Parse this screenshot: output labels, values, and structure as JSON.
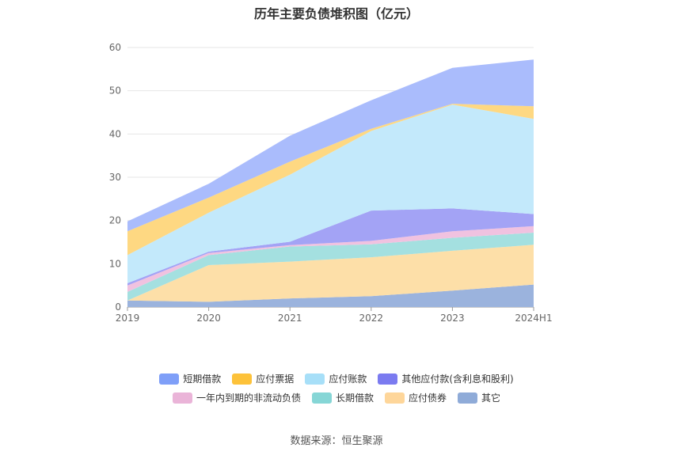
{
  "chart_data": {
    "type": "area",
    "stacked": true,
    "title": "历年主要负债堆积图（亿元）",
    "source": "数据来源：恒生聚源",
    "categories": [
      "2019",
      "2020",
      "2021",
      "2022",
      "2023",
      "2024H1"
    ],
    "ylim": [
      0,
      60
    ],
    "yticks": [
      0,
      10,
      20,
      30,
      40,
      50,
      60
    ],
    "grid": true,
    "legend_position": "bottom",
    "legend_rows": [
      [
        "短期借款",
        "应付票据",
        "应付账款",
        "其他应付款(含利息和股利)"
      ],
      [
        "一年内到期的非流动负债",
        "长期借款",
        "应付债券",
        "其它"
      ]
    ],
    "series": [
      {
        "name": "其它",
        "color": "#9bb3dd",
        "values": [
          1.5,
          1.2,
          2.0,
          2.5,
          3.8,
          5.2
        ]
      },
      {
        "name": "应付债券",
        "color": "#fddfa8",
        "values": [
          0.0,
          8.5,
          8.5,
          9.0,
          9.2,
          9.2
        ]
      },
      {
        "name": "长期借款",
        "color": "#a4e0e0",
        "values": [
          2.0,
          2.3,
          3.5,
          3.0,
          3.0,
          2.8
        ]
      },
      {
        "name": "一年内到期的非流动负债",
        "color": "#f0c2e0",
        "values": [
          1.5,
          0.5,
          0.3,
          0.8,
          1.5,
          1.5
        ]
      },
      {
        "name": "其他应付款(含利息和股利)",
        "color": "#a3a3f5",
        "values": [
          0.5,
          0.3,
          0.8,
          7.0,
          5.3,
          2.8
        ]
      },
      {
        "name": "应付账款",
        "color": "#c3e9fb",
        "values": [
          6.5,
          9.0,
          15.5,
          18.4,
          24.0,
          22.0
        ]
      },
      {
        "name": "应付票据",
        "color": "#fed882",
        "values": [
          5.5,
          3.5,
          3.0,
          0.5,
          0.2,
          2.9
        ]
      },
      {
        "name": "短期借款",
        "color": "#aabcfc",
        "values": [
          2.3,
          3.2,
          6.0,
          6.6,
          8.3,
          10.8
        ]
      }
    ],
    "legend_colors": {
      "短期借款": "#7f9ff8",
      "应付票据": "#fdc23a",
      "应付账款": "#a7dff8",
      "其他应付款(含利息和股利)": "#7b7bf0",
      "一年内到期的非流动负债": "#eab4d8",
      "长期借款": "#86d6d6",
      "应付债券": "#fed69a",
      "其它": "#8fabd8"
    }
  }
}
